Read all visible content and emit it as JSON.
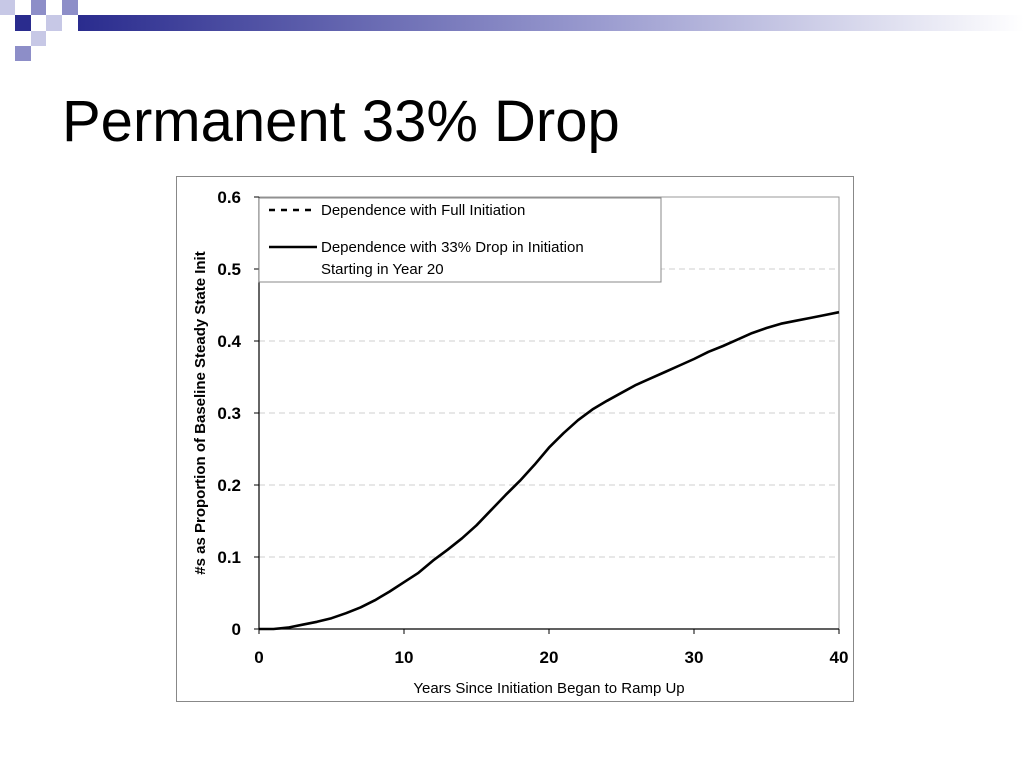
{
  "slide": {
    "title": "Permanent 33% Drop",
    "decoration_colors": [
      "#2a2c8e",
      "#8d8ec8",
      "#c7c8e6"
    ]
  },
  "chart_data": {
    "type": "line",
    "xlabel": "Years Since Initiation Began to Ramp Up",
    "ylabel": "#s as Proportion of Baseline Steady State Init",
    "xlim": [
      0,
      40
    ],
    "ylim": [
      0,
      0.6
    ],
    "xticks": [
      "0",
      "10",
      "20",
      "30",
      "40"
    ],
    "yticks": [
      "0",
      "0.1",
      "0.2",
      "0.3",
      "0.4",
      "0.5",
      "0.6"
    ],
    "grid": "horizontal dashed",
    "legend_position": "top-left",
    "series": [
      {
        "name": "Dependence with Full Initiation",
        "style": "dashed",
        "color": "#000000",
        "x": [],
        "y": []
      },
      {
        "name": "Dependence with 33% Drop in Initiation Starting in Year 20",
        "legend_lines": [
          "Dependence with 33% Drop in Initiation",
          "Starting in Year 20"
        ],
        "style": "solid",
        "color": "#000000",
        "x": [
          0,
          1,
          2,
          3,
          4,
          5,
          6,
          7,
          8,
          9,
          10,
          11,
          12,
          13,
          14,
          15,
          16,
          17,
          18,
          19,
          20,
          21,
          22,
          23,
          24,
          25,
          26,
          27,
          28,
          29,
          30,
          31,
          32,
          33,
          34,
          35,
          36,
          37,
          38,
          39,
          40
        ],
        "y": [
          0,
          0,
          0.002,
          0.006,
          0.01,
          0.015,
          0.022,
          0.03,
          0.04,
          0.052,
          0.065,
          0.078,
          0.095,
          0.11,
          0.126,
          0.144,
          0.165,
          0.186,
          0.206,
          0.228,
          0.252,
          0.272,
          0.29,
          0.305,
          0.317,
          0.328,
          0.339,
          0.348,
          0.357,
          0.366,
          0.375,
          0.385,
          0.393,
          0.402,
          0.411,
          0.418,
          0.424,
          0.428,
          0.432,
          0.436,
          0.44
        ]
      }
    ]
  }
}
